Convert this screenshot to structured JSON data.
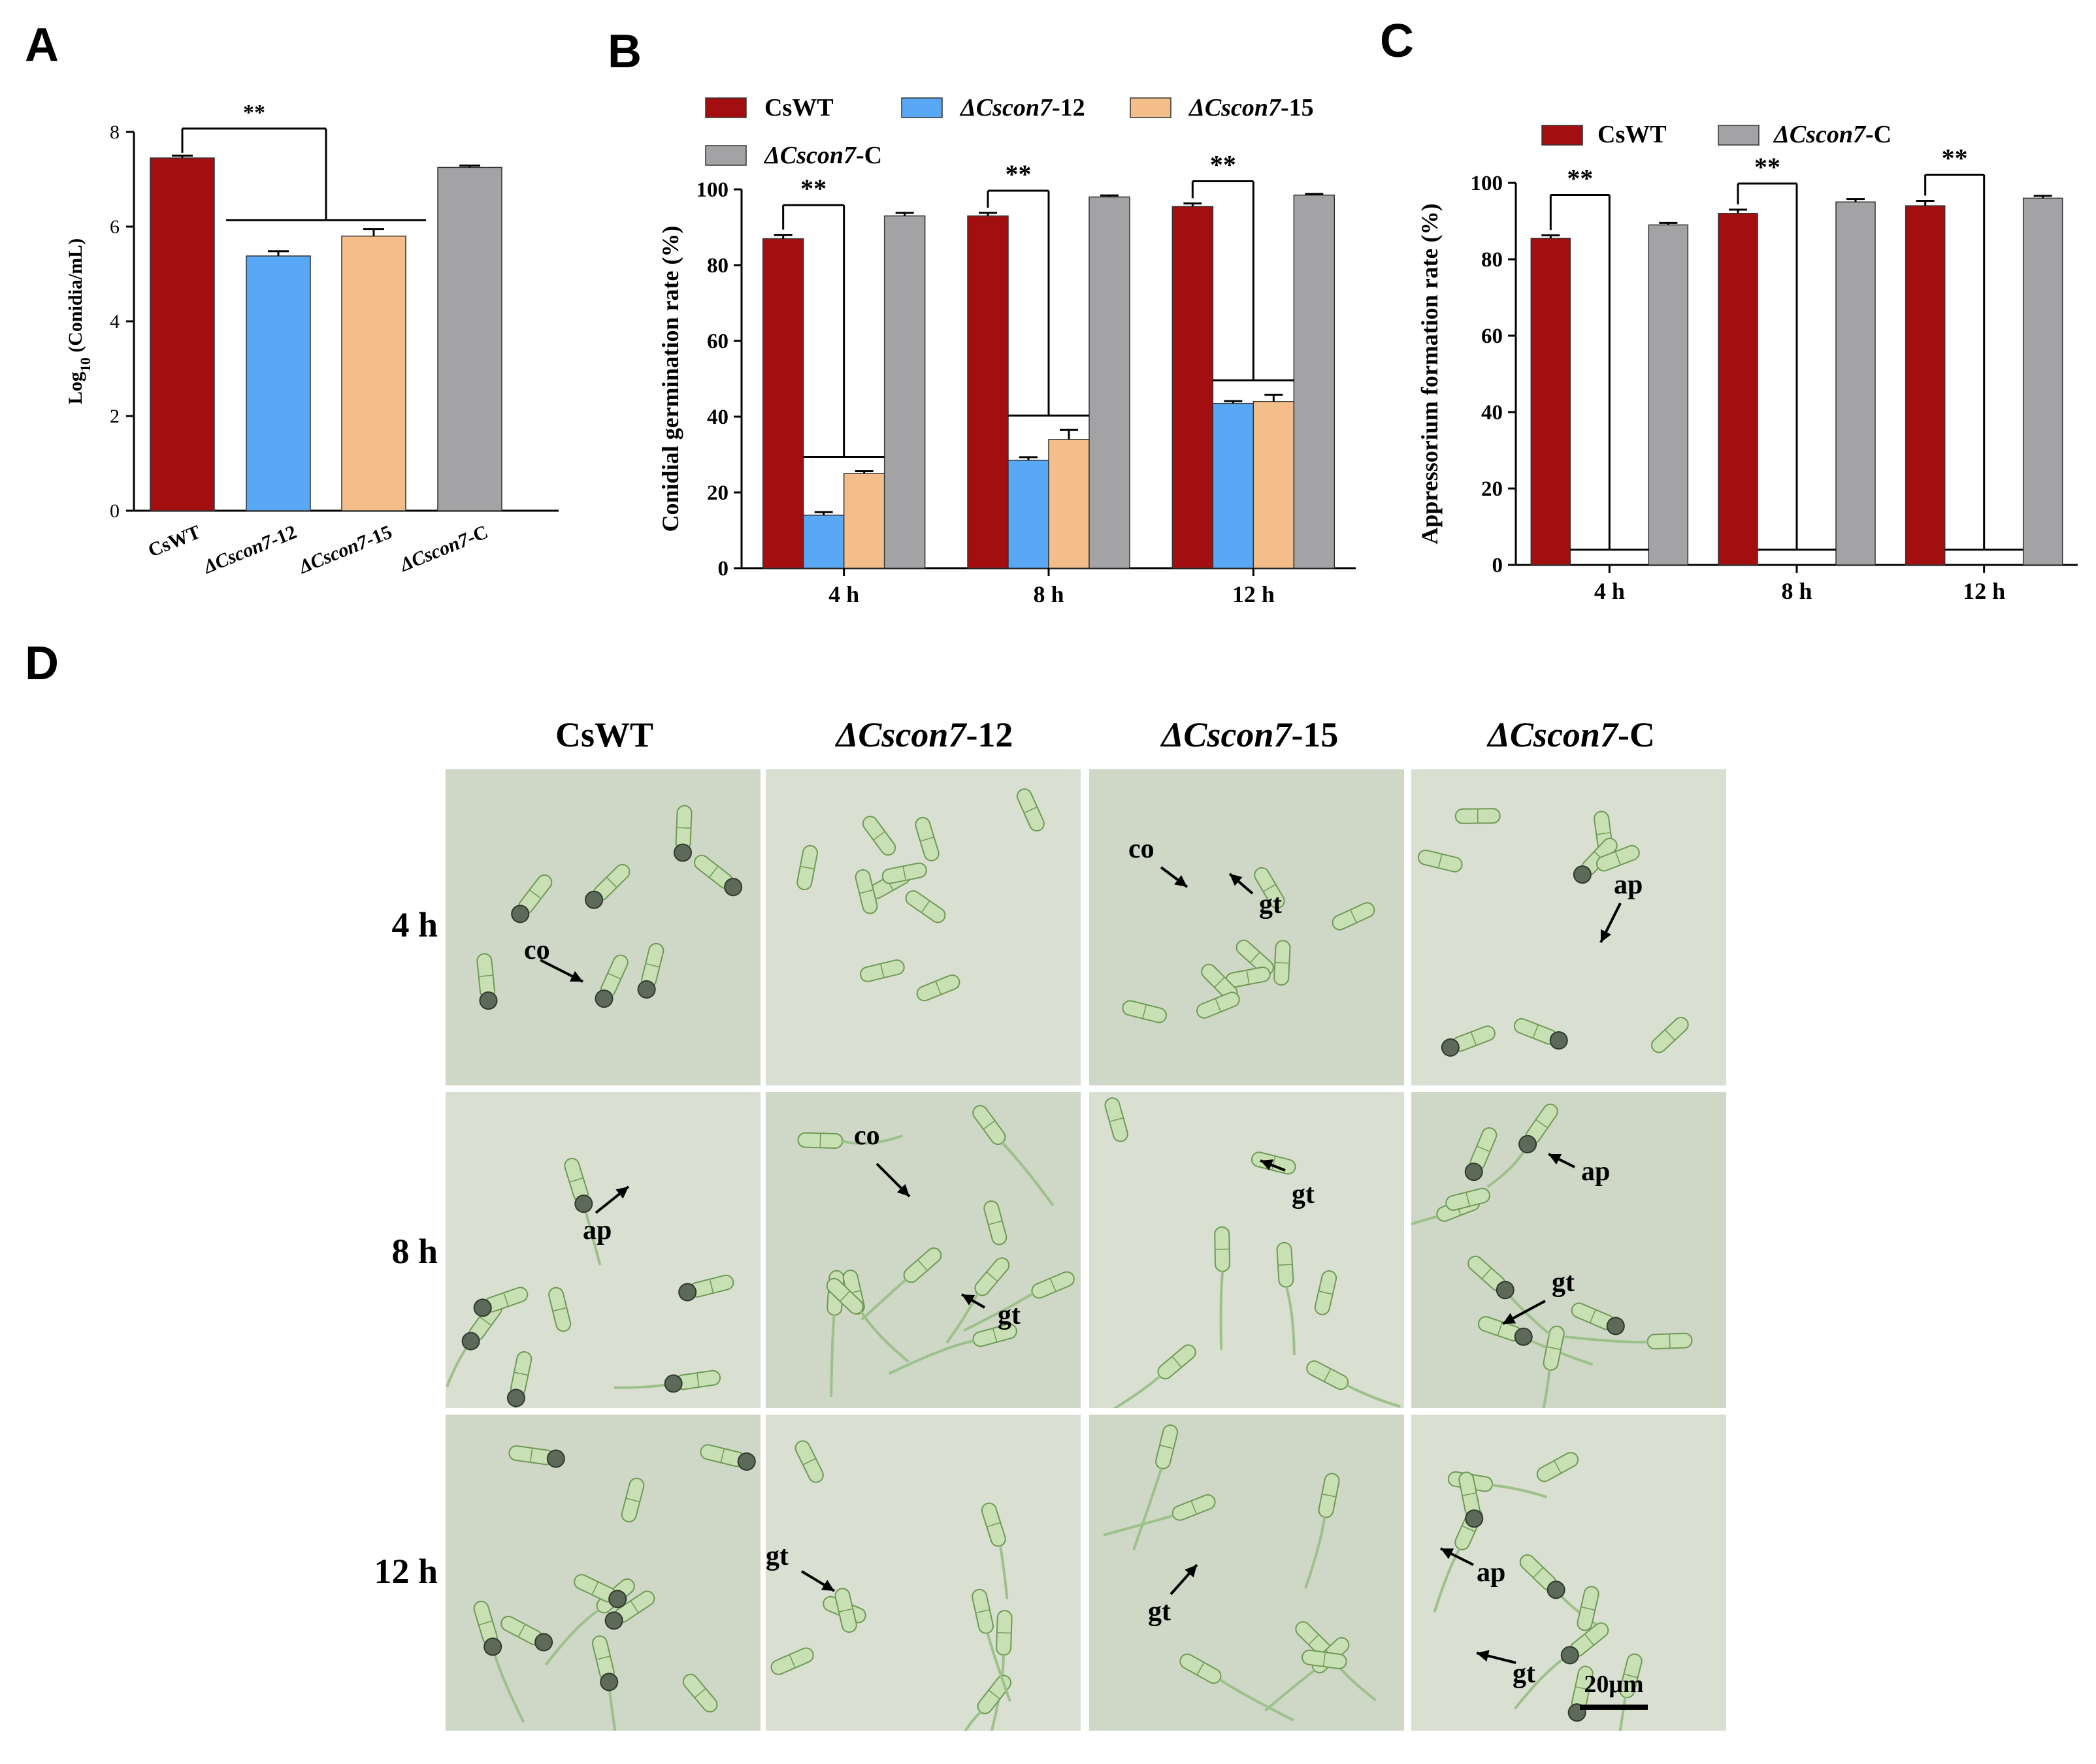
{
  "panels": {
    "A": {
      "label": "A"
    },
    "B": {
      "label": "B"
    },
    "C": {
      "label": "C"
    },
    "D": {
      "label": "D"
    }
  },
  "colors": {
    "CsWT": "#a30f10",
    "dCscon7-12": "#58a8f5",
    "dCscon7-15": "#f3be8a",
    "dCscon7-C": "#a3a3a6",
    "micro_bg_a": "#cfd7c7",
    "micro_bg_b": "#d9dfd1"
  },
  "chart_data": [
    {
      "id": "A",
      "type": "bar",
      "categories": [
        {
          "name": "CsWT",
          "italic": ""
        },
        {
          "name": "-12",
          "italic": "ΔCscon7"
        },
        {
          "name": "-15",
          "italic": "ΔCscon7"
        },
        {
          "name": "-C",
          "italic": "ΔCscon7"
        }
      ],
      "values": [
        7.45,
        5.38,
        5.8,
        7.25
      ],
      "errors": [
        0.05,
        0.1,
        0.15,
        0.04
      ],
      "ylabel_prefix": "Log",
      "ylabel_sub": "10",
      "ylabel_suffix": " (Conidia/mL)",
      "ylim": [
        0,
        8
      ],
      "yticks": [
        "0",
        "2",
        "4",
        "6",
        "8"
      ],
      "significance": "**"
    },
    {
      "id": "B",
      "type": "bar",
      "categories": [
        "4 h",
        "8 h",
        "12 h"
      ],
      "series": [
        {
          "name": "CsWT",
          "italic": "",
          "values": [
            87.0,
            93.0,
            95.5
          ],
          "errors": [
            1.0,
            0.8,
            0.8
          ]
        },
        {
          "name": "-12",
          "italic": "ΔCscon7",
          "values": [
            14.0,
            28.5,
            43.5
          ],
          "errors": [
            0.8,
            0.8,
            0.6
          ]
        },
        {
          "name": "-15",
          "italic": "ΔCscon7",
          "values": [
            25.0,
            34.0,
            44.0
          ],
          "errors": [
            0.6,
            2.5,
            1.8
          ]
        },
        {
          "name": "-C",
          "italic": "ΔCscon7",
          "values": [
            93.0,
            98.0,
            98.5
          ],
          "errors": [
            0.8,
            0.4,
            0.3
          ]
        }
      ],
      "ylabel": "Conidial germination rate (%)",
      "ylim": [
        0,
        100
      ],
      "yticks": [
        "0",
        "20",
        "40",
        "60",
        "80",
        "100"
      ],
      "significance": "**"
    },
    {
      "id": "C",
      "type": "bar",
      "categories": [
        "4 h",
        "8 h",
        "12 h"
      ],
      "series": [
        {
          "name": "CsWT",
          "italic": "",
          "values": [
            85.5,
            92.0,
            94.0
          ],
          "errors": [
            0.8,
            1.0,
            1.3
          ]
        },
        {
          "name": "-12",
          "italic": "ΔCscon7",
          "values": [
            0,
            0,
            0
          ],
          "errors": [
            0,
            0,
            0
          ]
        },
        {
          "name": "-15",
          "italic": "ΔCscon7",
          "values": [
            0,
            0,
            0
          ],
          "errors": [
            0,
            0,
            0
          ]
        },
        {
          "name": "-C",
          "italic": "ΔCscon7",
          "values": [
            89.0,
            95.0,
            96.0
          ],
          "errors": [
            0.5,
            0.8,
            0.6
          ]
        }
      ],
      "legend": [
        {
          "name": "CsWT",
          "italic": ""
        },
        {
          "name": "-C",
          "italic": "ΔCscon7"
        }
      ],
      "ylabel": "Appressorium formation rate (%)",
      "ylim": [
        0,
        100
      ],
      "yticks": [
        "0",
        "20",
        "40",
        "60",
        "80",
        "100"
      ],
      "significance": "**"
    }
  ],
  "micrographs": {
    "columns": [
      {
        "name": "CsWT",
        "italic": ""
      },
      {
        "name": "-12",
        "italic": "ΔCscon7"
      },
      {
        "name": "-15",
        "italic": "ΔCscon7"
      },
      {
        "name": "-C",
        "italic": "ΔCscon7"
      }
    ],
    "rows": [
      "4 h",
      "8 h",
      "12 h"
    ],
    "annotations": {
      "co": "co",
      "gt": "gt",
      "ap": "ap"
    },
    "scale_bar": "20μm"
  }
}
